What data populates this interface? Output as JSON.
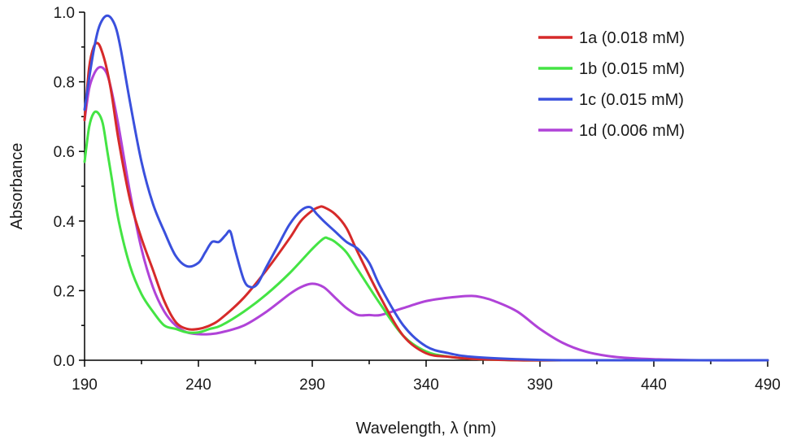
{
  "chart_data": {
    "type": "line",
    "title": "",
    "xlabel": "Wavelength, λ (nm)",
    "ylabel": "Absorbance",
    "xlim": [
      190,
      490
    ],
    "ylim": [
      0.0,
      1.0
    ],
    "x_ticks": [
      190,
      240,
      290,
      340,
      390,
      440,
      490
    ],
    "x_tick_labels": [
      "190",
      "240",
      "290",
      "340",
      "390",
      "440",
      "490"
    ],
    "y_ticks": [
      0.0,
      0.2,
      0.4,
      0.6,
      0.8,
      1.0
    ],
    "y_tick_labels": [
      "0.0",
      "0.2",
      "0.4",
      "0.6",
      "0.8",
      "1.0"
    ],
    "grid": false,
    "legend_position": "top-right",
    "series": [
      {
        "name": "1a (0.018 mM)",
        "color": "#d62a2a",
        "x": [
          190,
          192,
          194,
          196,
          198,
          200,
          202,
          205,
          210,
          215,
          220,
          225,
          230,
          235,
          240,
          245,
          250,
          260,
          270,
          280,
          285,
          290,
          293,
          295,
          300,
          305,
          310,
          320,
          330,
          340,
          350,
          360,
          380,
          400,
          440,
          490
        ],
        "y": [
          0.69,
          0.84,
          0.9,
          0.91,
          0.88,
          0.83,
          0.76,
          0.63,
          0.46,
          0.35,
          0.26,
          0.17,
          0.11,
          0.09,
          0.09,
          0.1,
          0.12,
          0.18,
          0.26,
          0.35,
          0.4,
          0.43,
          0.44,
          0.44,
          0.42,
          0.38,
          0.31,
          0.18,
          0.07,
          0.02,
          0.01,
          0.004,
          0.0,
          0.0,
          0.0,
          0.0
        ]
      },
      {
        "name": "1b (0.015 mM)",
        "color": "#44e444",
        "x": [
          190,
          192,
          194,
          196,
          198,
          200,
          202,
          205,
          210,
          215,
          220,
          225,
          230,
          235,
          240,
          245,
          250,
          260,
          270,
          280,
          290,
          295,
          297,
          300,
          305,
          310,
          320,
          330,
          340,
          350,
          360,
          380,
          400,
          440,
          490
        ],
        "y": [
          0.57,
          0.67,
          0.71,
          0.71,
          0.68,
          0.6,
          0.52,
          0.4,
          0.27,
          0.19,
          0.14,
          0.1,
          0.09,
          0.08,
          0.08,
          0.09,
          0.1,
          0.14,
          0.19,
          0.25,
          0.32,
          0.35,
          0.35,
          0.34,
          0.31,
          0.26,
          0.16,
          0.07,
          0.025,
          0.01,
          0.004,
          0.0,
          0.0,
          0.0,
          0.0
        ]
      },
      {
        "name": "1c (0.015 mM)",
        "color": "#3a50dd",
        "x": [
          190,
          192,
          194,
          196,
          198,
          200,
          202,
          204,
          206,
          210,
          215,
          220,
          225,
          230,
          235,
          240,
          243,
          246,
          249,
          252,
          254,
          256,
          260,
          263,
          266,
          270,
          275,
          280,
          285,
          289,
          292,
          295,
          300,
          305,
          310,
          315,
          320,
          330,
          340,
          350,
          360,
          380,
          400,
          440,
          490
        ],
        "y": [
          0.72,
          0.81,
          0.89,
          0.95,
          0.98,
          0.99,
          0.98,
          0.95,
          0.89,
          0.74,
          0.57,
          0.45,
          0.37,
          0.3,
          0.27,
          0.28,
          0.31,
          0.34,
          0.34,
          0.36,
          0.37,
          0.32,
          0.23,
          0.21,
          0.22,
          0.27,
          0.33,
          0.39,
          0.43,
          0.44,
          0.42,
          0.4,
          0.37,
          0.34,
          0.32,
          0.28,
          0.21,
          0.1,
          0.04,
          0.02,
          0.01,
          0.003,
          0.0,
          0.0,
          0.0
        ]
      },
      {
        "name": "1d (0.006 mM)",
        "color": "#b043d8",
        "x": [
          190,
          192,
          194,
          196,
          198,
          200,
          202,
          205,
          210,
          215,
          220,
          225,
          230,
          235,
          240,
          245,
          250,
          260,
          270,
          280,
          285,
          290,
          295,
          300,
          305,
          310,
          315,
          320,
          330,
          340,
          350,
          360,
          365,
          370,
          380,
          390,
          400,
          410,
          420,
          430,
          440,
          460,
          490
        ],
        "y": [
          0.69,
          0.78,
          0.82,
          0.84,
          0.84,
          0.82,
          0.77,
          0.67,
          0.48,
          0.32,
          0.21,
          0.14,
          0.1,
          0.08,
          0.075,
          0.075,
          0.08,
          0.1,
          0.14,
          0.19,
          0.21,
          0.22,
          0.21,
          0.18,
          0.15,
          0.13,
          0.13,
          0.13,
          0.15,
          0.17,
          0.18,
          0.185,
          0.18,
          0.17,
          0.14,
          0.09,
          0.05,
          0.025,
          0.012,
          0.006,
          0.003,
          0.0,
          0.0
        ]
      }
    ]
  }
}
